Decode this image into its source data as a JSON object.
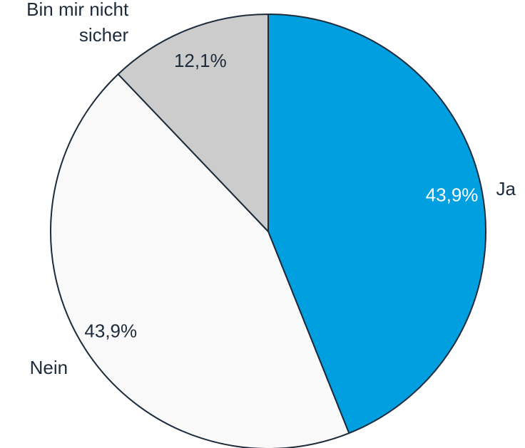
{
  "chart_data": {
    "type": "pie",
    "categories": [
      "Ja",
      "Nein",
      "Bin mir nicht sicher"
    ],
    "values": [
      43.9,
      43.9,
      12.1
    ],
    "value_labels": [
      "43,9%",
      "43,9%",
      "12,1%"
    ],
    "colors": [
      "#009fdf",
      "#f9f9f9",
      "#cccccc"
    ]
  }
}
